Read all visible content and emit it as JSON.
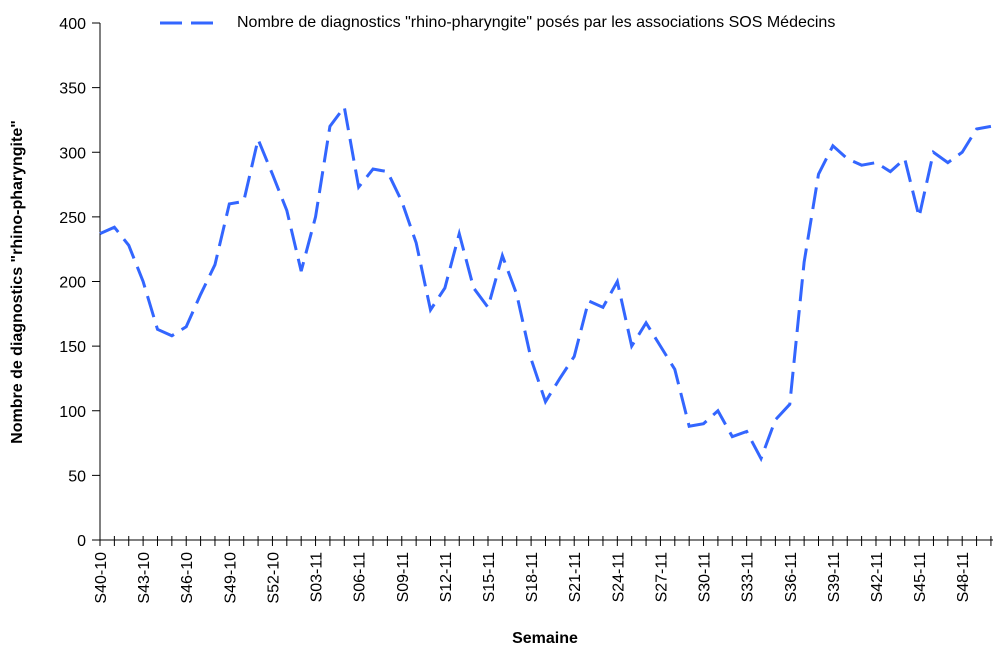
{
  "chart_data": {
    "type": "line",
    "legend_label": "Nombre de diagnostics \"rhino-pharyngite\" posés par les associations SOS Médecins",
    "x_label": "Semaine",
    "y_label": "Nombre de diagnostics \"rhino-pharyngite\"",
    "categories": [
      "S40-10",
      null,
      null,
      "S43-10",
      null,
      null,
      "S46-10",
      null,
      null,
      "S49-10",
      null,
      null,
      "S52-10",
      null,
      null,
      "S03-11",
      null,
      null,
      "S06-11",
      null,
      null,
      "S09-11",
      null,
      null,
      "S12-11",
      null,
      null,
      "S15-11",
      null,
      null,
      "S18-11",
      null,
      null,
      "S21-11",
      null,
      null,
      "S24-11",
      null,
      null,
      "S27-11",
      null,
      null,
      "S30-11",
      null,
      null,
      "S33-11",
      null,
      null,
      "S36-11",
      null,
      null,
      "S39-11",
      null,
      null,
      "S42-11",
      null,
      null,
      "S45-11",
      null,
      null,
      "S48-11",
      null,
      null
    ],
    "series": [
      {
        "name": "Nombre de diagnostics \"rhino-pharyngite\" posés par les associations SOS Médecins",
        "color": "#3366ff",
        "values": [
          237,
          242,
          228,
          200,
          163,
          158,
          165,
          190,
          213,
          260,
          262,
          310,
          283,
          255,
          208,
          250,
          320,
          335,
          273,
          287,
          285,
          262,
          230,
          178,
          195,
          237,
          195,
          180,
          220,
          190,
          140,
          107,
          125,
          142,
          185,
          180,
          200,
          150,
          168,
          150,
          132,
          88,
          90,
          100,
          80,
          84,
          63,
          93,
          105,
          215,
          283,
          305,
          295,
          290,
          292,
          285,
          295,
          250,
          300,
          292,
          300,
          318,
          320
        ]
      }
    ],
    "ylim": [
      0,
      400
    ],
    "yticks": [
      0,
      50,
      100,
      150,
      200,
      250,
      300,
      350,
      400
    ],
    "dashed": true
  }
}
